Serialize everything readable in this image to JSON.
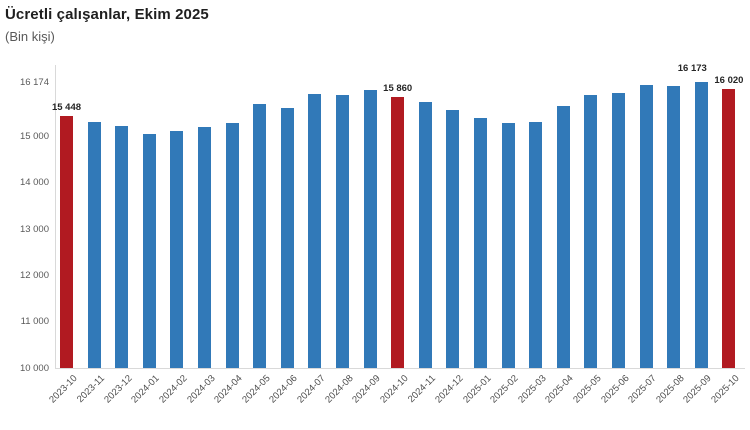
{
  "header": {
    "title": "Ücretli çalışanlar, Ekim 2025",
    "subtitle": "(Bin kişi)"
  },
  "colors": {
    "bar_default": "#3179b8",
    "bar_highlight": "#b11a21",
    "axis_line": "#d9d9d9",
    "y_tick_text": "#595959",
    "x_tick_text": "#4d4d4d",
    "value_label_text": "#262626"
  },
  "chart_data": {
    "type": "bar",
    "title": "Ücretli çalışanlar, Ekim 2025",
    "subtitle": "(Bin kişi)",
    "ylabel": "Bin kişi",
    "xlabel": "",
    "ylim": [
      10000,
      16174
    ],
    "grid": false,
    "legend": false,
    "categories": [
      "2023-10",
      "2023-11",
      "2023-12",
      "2024-01",
      "2024-02",
      "2024-03",
      "2024-04",
      "2024-05",
      "2024-06",
      "2024-07",
      "2024-08",
      "2024-09",
      "2024-10",
      "2024-11",
      "2024-12",
      "2025-01",
      "2025-02",
      "2025-03",
      "2025-04",
      "2025-05",
      "2025-06",
      "2025-07",
      "2025-08",
      "2025-09",
      "2025-10"
    ],
    "values": [
      15448,
      15305,
      15225,
      15060,
      15125,
      15205,
      15280,
      15690,
      15605,
      15905,
      15885,
      15995,
      15860,
      15750,
      15580,
      15405,
      15280,
      15310,
      15665,
      15890,
      15930,
      16105,
      16085,
      16173,
      16020
    ],
    "highlighted_categories": [
      "2023-10",
      "2024-10",
      "2025-10"
    ],
    "data_labels": [
      {
        "category": "2023-10",
        "label": "15 448"
      },
      {
        "category": "2024-10",
        "label": "15 860"
      },
      {
        "category": "2025-09",
        "label": "16 173"
      },
      {
        "category": "2025-10",
        "label": "16 020"
      }
    ],
    "yticks": [
      {
        "value": 16174,
        "label": "16 174"
      },
      {
        "value": 15000,
        "label": "15 000"
      },
      {
        "value": 14000,
        "label": "14 000"
      },
      {
        "value": 13000,
        "label": "13 000"
      },
      {
        "value": 12000,
        "label": "12 000"
      },
      {
        "value": 11000,
        "label": "11 000"
      },
      {
        "value": 10000,
        "label": "10 000"
      }
    ]
  }
}
